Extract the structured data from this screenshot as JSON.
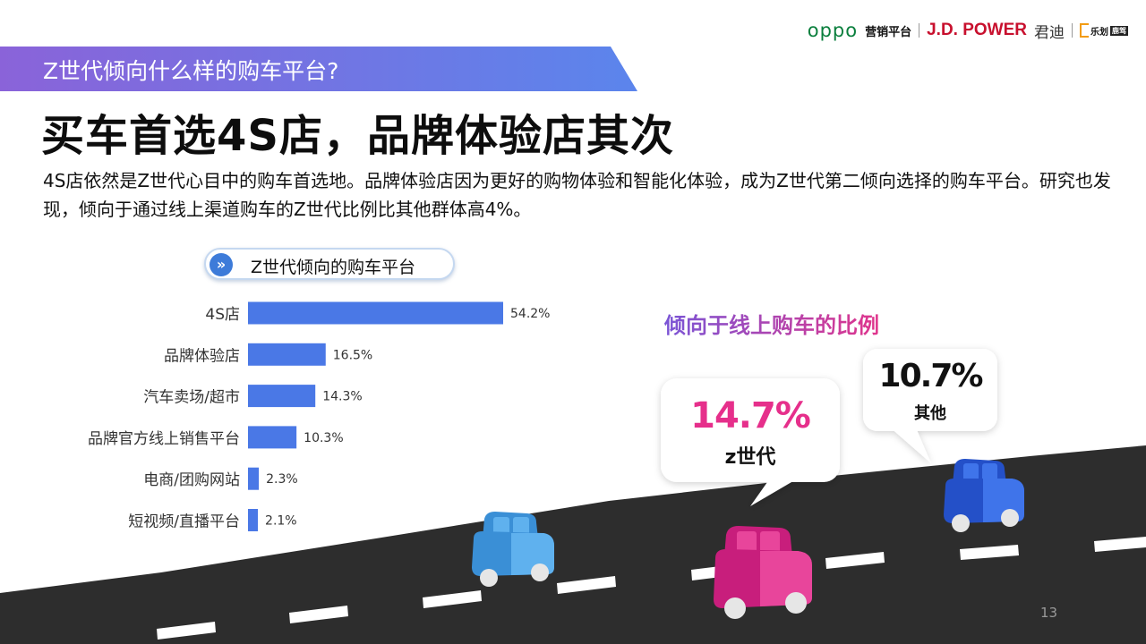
{
  "header": {
    "logos": {
      "oppo": "oppo",
      "marketing": "营销平台",
      "jdpower": "J.D. POWER",
      "jundi": "君迪",
      "lejia": "乐划",
      "lejia_badge": "鹿驾"
    },
    "banner_question": "Z世代倾向什么样的购车平台?",
    "headline": "买车首选4S店，品牌体验店其次",
    "description": "4S店依然是Z世代心目中的购车首选地。品牌体验店因为更好的购物体验和智能化体验，成为Z世代第二倾向选择的购车平台。研究也发现，倾向于通过线上渠道购车的Z世代比例比其他群体高4%。"
  },
  "chart_pill": {
    "icon": "chevron-right-icon",
    "title": "Z世代倾向的购车平台"
  },
  "chart_data": {
    "type": "bar",
    "orientation": "horizontal",
    "title": "Z世代倾向的购车平台",
    "categories": [
      "4S店",
      "品牌体验店",
      "汽车卖场/超市",
      "品牌官方线上销售平台",
      "电商/团购网站",
      "短视频/直播平台"
    ],
    "values": [
      54.2,
      16.5,
      14.3,
      10.3,
      2.3,
      2.1
    ],
    "value_labels": [
      "54.2%",
      "16.5%",
      "14.3%",
      "10.3%",
      "2.3%",
      "2.1%"
    ],
    "unit": "%",
    "bar_color": "#4a78e6",
    "xlim": [
      0,
      60
    ],
    "grid": false
  },
  "online_share": {
    "title": "倾向于线上购车的比例",
    "genz": {
      "value": "14.7%",
      "label": "z世代",
      "color": "#e62f8b"
    },
    "others": {
      "value": "10.7%",
      "label": "其他",
      "color": "#111111"
    }
  },
  "colors": {
    "banner_start": "#8a63d9",
    "banner_end": "#5a7fea",
    "road": "#2d2d2d",
    "car_pink": "#e0258a",
    "car_blue_light": "#4aa3e6",
    "car_blue_dark": "#2f5fde"
  },
  "page_number": "13"
}
